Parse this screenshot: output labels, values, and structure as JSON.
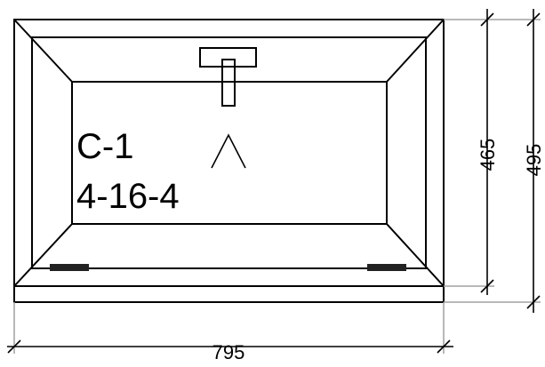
{
  "window": {
    "label": "C-1",
    "glazing": "4-16-4",
    "opening_symbol": "^"
  },
  "dimensions": {
    "width": "795",
    "sash_height": "465",
    "total_height": "495"
  }
}
